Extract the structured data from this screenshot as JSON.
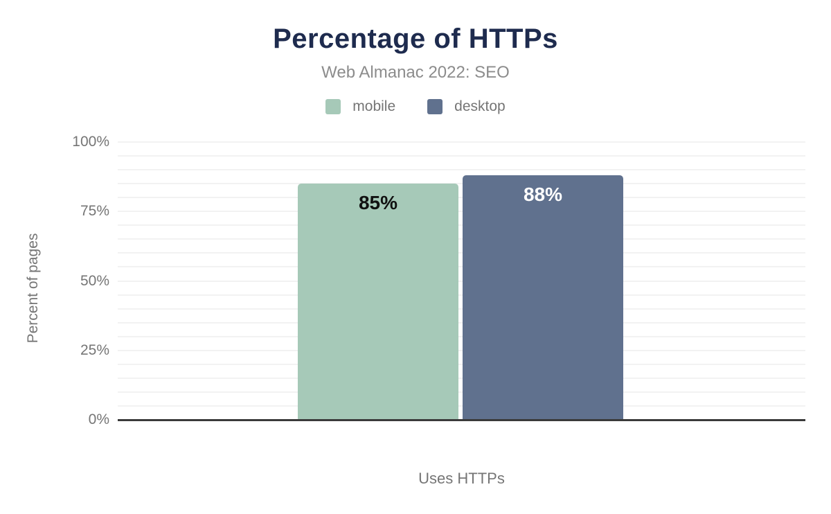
{
  "chart_data": {
    "type": "bar",
    "title": "Percentage of HTTPs",
    "subtitle": "Web Almanac 2022: SEO",
    "categories": [
      "Uses HTTPs"
    ],
    "series": [
      {
        "name": "mobile",
        "values": [
          85
        ],
        "data_labels": [
          "85%"
        ],
        "color": "#a6c9b8",
        "label_color": "#111111"
      },
      {
        "name": "desktop",
        "values": [
          88
        ],
        "data_labels": [
          "88%"
        ],
        "color": "#60718e",
        "label_color": "#ffffff"
      }
    ],
    "xlabel": "Uses HTTPs",
    "ylabel": "Percent of pages",
    "ylim": [
      0,
      100
    ],
    "y_ticks": [
      {
        "value": 0,
        "label": "0%"
      },
      {
        "value": 25,
        "label": "25%"
      },
      {
        "value": 50,
        "label": "50%"
      },
      {
        "value": 75,
        "label": "75%"
      },
      {
        "value": 100,
        "label": "100%"
      }
    ],
    "minor_gridline_step": 5,
    "grid": true,
    "legend_position": "top-center"
  },
  "colors": {
    "title_text": "#1e2b4e",
    "subtitle_text": "#8c8c8c",
    "axis_text": "#757575",
    "gridline": "#f2f2f2",
    "axis_line": "#3a3a3a",
    "background": "#ffffff"
  }
}
